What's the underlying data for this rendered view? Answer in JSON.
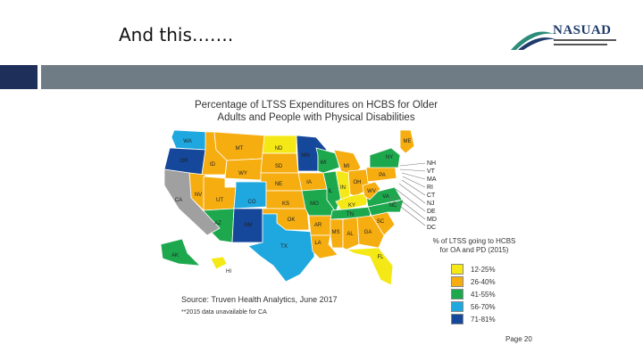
{
  "slide": {
    "title": "And this…….",
    "page_label": "Page",
    "page_number": "20"
  },
  "logo": {
    "text": "NASUAD"
  },
  "colors": {
    "nav_dark": "#1e2f5a",
    "nav_grey": "#6f7c85",
    "bin_12_25": "#f5e817",
    "bin_26_40": "#f6ad10",
    "bin_41_55": "#1ea84e",
    "bin_56_70": "#1ea8df",
    "bin_71_81": "#15479a",
    "unavailable": "#a0a0a0"
  },
  "chart_data": {
    "type": "choropleth",
    "title": "Percentage of LTSS Expenditures on HCBS for Older Adults and People with Physical Disabilities",
    "legend_title": "% of LTSS going to HCBS for OA and PD (2015)",
    "bins": [
      {
        "label": "12-25%",
        "color_key": "bin_12_25"
      },
      {
        "label": "26-40%",
        "color_key": "bin_26_40"
      },
      {
        "label": "41-55%",
        "color_key": "bin_41_55"
      },
      {
        "label": "56-70%",
        "color_key": "bin_56_70"
      },
      {
        "label": "71-81%",
        "color_key": "bin_71_81"
      }
    ],
    "states": {
      "WA": "56-70%",
      "OR": "71-81%",
      "ID": "26-40%",
      "MT": "26-40%",
      "WY": "26-40%",
      "NV": "26-40%",
      "UT": "26-40%",
      "CO": "56-70%",
      "AZ": "41-55%",
      "NM": "71-81%",
      "ND": "12-25%",
      "SD": "26-40%",
      "NE": "26-40%",
      "KS": "26-40%",
      "OK": "26-40%",
      "TX": "56-70%",
      "MN": "71-81%",
      "IA": "26-40%",
      "MO": "41-55%",
      "AR": "26-40%",
      "LA": "26-40%",
      "WI": "41-55%",
      "IL": "41-55%",
      "IN": "12-25%",
      "MI": "26-40%",
      "OH": "26-40%",
      "KY": "12-25%",
      "TN": "41-55%",
      "MS": "26-40%",
      "AL": "26-40%",
      "GA": "26-40%",
      "FL": "12-25%",
      "SC": "26-40%",
      "NC": "41-55%",
      "VA": "41-55%",
      "WV": "26-40%",
      "PA": "26-40%",
      "NY": "41-55%",
      "ME": "26-40%",
      "AK": "41-55%",
      "HI": "12-25%",
      "CA": "unavailable"
    },
    "small_states": [
      "NH",
      "VT",
      "MA",
      "RI",
      "CT",
      "NJ",
      "DE",
      "MD",
      "DC"
    ],
    "source": "Source: Truven Health Analytics, June 2017",
    "note": "**2015 data unavailable for CA"
  }
}
